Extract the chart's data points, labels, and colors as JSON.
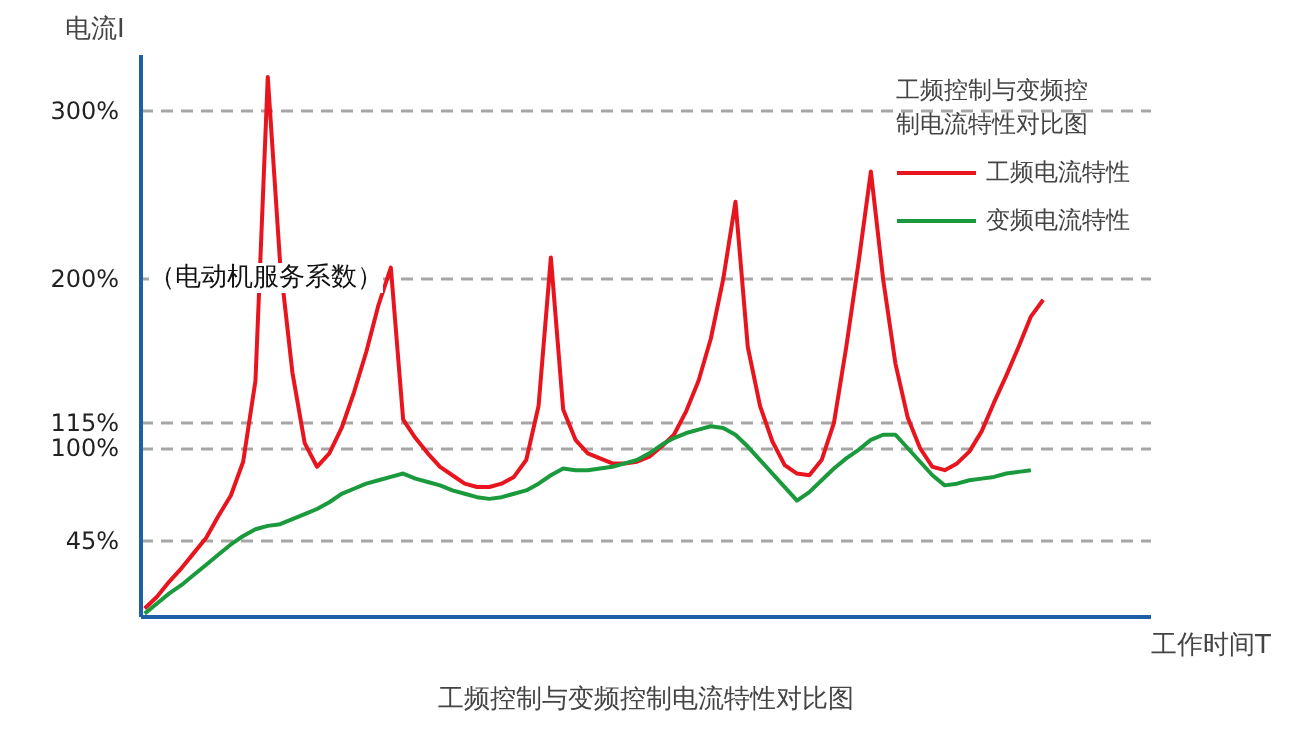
{
  "chart_data": {
    "type": "line",
    "title": "工频控制与变频控制电流特性对比图",
    "xlabel": "工作时间T",
    "ylabel": "电流I",
    "legend_title": "工频控制与变频控制电流特性对比图",
    "categories": [
      null,
      null,
      null,
      null,
      null,
      null,
      null,
      null,
      null,
      null,
      null,
      null,
      null,
      null,
      null,
      null,
      null,
      null,
      null,
      null,
      null,
      null,
      null,
      null,
      null,
      null,
      null,
      null,
      null,
      null,
      null,
      null,
      null,
      null,
      null,
      null,
      null,
      null,
      null,
      null,
      null,
      null,
      null,
      null,
      null,
      null,
      null,
      null,
      null,
      null,
      null,
      null,
      null,
      null,
      null,
      null,
      null,
      null,
      null,
      null,
      null,
      null,
      null,
      null,
      null,
      null,
      null,
      null,
      null,
      null,
      null,
      null,
      null,
      null
    ],
    "ylim": [
      0,
      333
    ],
    "yticks": [
      {
        "value": 45,
        "label": "45%"
      },
      {
        "value": 100,
        "label": "100%"
      },
      {
        "value": 115,
        "label": "115%"
      },
      {
        "value": 200,
        "label": "200%"
      },
      {
        "value": 300,
        "label": "300%"
      }
    ],
    "grid": "y",
    "legend": "top right",
    "line_style": "solid",
    "annotations": [
      "（电动机服务系数）"
    ],
    "series": [
      {
        "name": "工频电流特性",
        "color": "#e8141e",
        "values": [
          5,
          12,
          21,
          29,
          38,
          47,
          60,
          72,
          92,
          140,
          320,
          210,
          145,
          103,
          89,
          97,
          112,
          133,
          157,
          185,
          207,
          117,
          106,
          97,
          89,
          84,
          79,
          77,
          77,
          79,
          83,
          93,
          125,
          213,
          123,
          105,
          97,
          94,
          91,
          91,
          92,
          95,
          101,
          108,
          122,
          140,
          165,
          200,
          246,
          160,
          125,
          104,
          90,
          85,
          84,
          93,
          115,
          160,
          210,
          264,
          200,
          150,
          118,
          100,
          89,
          87,
          91,
          98,
          110,
          127,
          143,
          160,
          178,
          188
        ]
      },
      {
        "name": "变频电流特性",
        "color": "#1a9a3c",
        "values": [
          2,
          8,
          14,
          19,
          25,
          31,
          37,
          43,
          48,
          52,
          54,
          55,
          58,
          61,
          64,
          68,
          73,
          76,
          79,
          81,
          83,
          85,
          82,
          80,
          78,
          75,
          73,
          71,
          70,
          71,
          73,
          75,
          79,
          84,
          88,
          87,
          87,
          88,
          89,
          91,
          93,
          97,
          102,
          106,
          109,
          111,
          113,
          112,
          108,
          101,
          93,
          85,
          77,
          69,
          74,
          81,
          88,
          94,
          99,
          105,
          108,
          108,
          100,
          92,
          84,
          78,
          79,
          81,
          82,
          83,
          85,
          86,
          87,
          null
        ]
      }
    ]
  }
}
